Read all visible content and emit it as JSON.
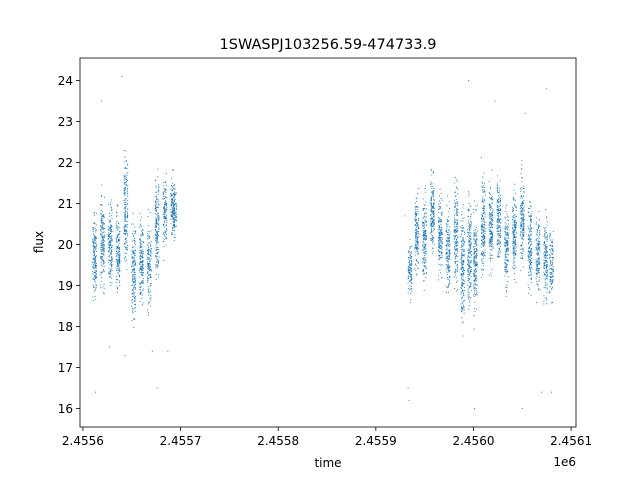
{
  "chart_data": {
    "type": "scatter",
    "title": "1SWASPJ103256.59-474733.9",
    "xlabel": "time",
    "ylabel": "flux",
    "x_offset_label": "1e6",
    "xlim": [
      2455597,
      2456105
    ],
    "ylim": [
      15.55,
      24.55
    ],
    "xticks": [
      2455600,
      2455700,
      2455800,
      2455900,
      2456000,
      2456100
    ],
    "xtick_labels": [
      "2.4556",
      "2.4557",
      "2.4558",
      "2.4559",
      "2.4560",
      "2.4561"
    ],
    "yticks": [
      16,
      17,
      18,
      19,
      20,
      21,
      22,
      23,
      24
    ],
    "ytick_labels": [
      "16",
      "17",
      "18",
      "19",
      "20",
      "21",
      "22",
      "23",
      "24"
    ],
    "grid": false,
    "marker_color": "#1f77b4",
    "series": [
      {
        "name": "",
        "clusters": [
          {
            "x": 2455612,
            "center": 19.7,
            "spread": 1.0,
            "n": 160
          },
          {
            "x": 2455620,
            "center": 20.1,
            "spread": 1.1,
            "n": 170
          },
          {
            "x": 2455628,
            "center": 20.0,
            "spread": 1.0,
            "n": 160
          },
          {
            "x": 2455636,
            "center": 19.8,
            "spread": 1.0,
            "n": 150
          },
          {
            "x": 2455644,
            "center": 20.8,
            "spread": 1.3,
            "n": 170
          },
          {
            "x": 2455652,
            "center": 19.4,
            "spread": 1.3,
            "n": 160
          },
          {
            "x": 2455660,
            "center": 19.6,
            "spread": 1.1,
            "n": 160
          },
          {
            "x": 2455668,
            "center": 19.5,
            "spread": 1.0,
            "n": 140
          },
          {
            "x": 2455676,
            "center": 20.5,
            "spread": 1.2,
            "n": 170
          },
          {
            "x": 2455684,
            "center": 20.7,
            "spread": 0.9,
            "n": 120
          },
          {
            "x": 2455692,
            "center": 20.9,
            "spread": 0.7,
            "n": 110
          },
          {
            "x": 2455694,
            "center": 20.8,
            "spread": 0.6,
            "n": 90
          },
          {
            "x": 2455935,
            "center": 19.4,
            "spread": 0.7,
            "n": 110
          },
          {
            "x": 2455942,
            "center": 20.3,
            "spread": 1.0,
            "n": 150
          },
          {
            "x": 2455950,
            "center": 20.1,
            "spread": 1.0,
            "n": 160
          },
          {
            "x": 2455958,
            "center": 20.8,
            "spread": 1.0,
            "n": 160
          },
          {
            "x": 2455966,
            "center": 20.2,
            "spread": 1.0,
            "n": 160
          },
          {
            "x": 2455974,
            "center": 19.8,
            "spread": 1.0,
            "n": 150
          },
          {
            "x": 2455982,
            "center": 20.3,
            "spread": 1.3,
            "n": 170
          },
          {
            "x": 2455989,
            "center": 19.5,
            "spread": 1.4,
            "n": 180
          },
          {
            "x": 2455996,
            "center": 19.8,
            "spread": 1.3,
            "n": 180
          },
          {
            "x": 2456002,
            "center": 19.6,
            "spread": 1.3,
            "n": 170
          },
          {
            "x": 2456010,
            "center": 20.5,
            "spread": 1.2,
            "n": 170
          },
          {
            "x": 2456018,
            "center": 20.4,
            "spread": 1.0,
            "n": 160
          },
          {
            "x": 2456026,
            "center": 20.6,
            "spread": 1.0,
            "n": 160
          },
          {
            "x": 2456034,
            "center": 19.9,
            "spread": 1.0,
            "n": 150
          },
          {
            "x": 2456042,
            "center": 20.3,
            "spread": 1.1,
            "n": 160
          },
          {
            "x": 2456050,
            "center": 20.6,
            "spread": 1.1,
            "n": 160
          },
          {
            "x": 2456058,
            "center": 20.0,
            "spread": 1.1,
            "n": 150
          },
          {
            "x": 2456066,
            "center": 19.8,
            "spread": 1.0,
            "n": 140
          },
          {
            "x": 2456074,
            "center": 19.6,
            "spread": 1.0,
            "n": 140
          },
          {
            "x": 2456080,
            "center": 19.5,
            "spread": 0.9,
            "n": 110
          }
        ],
        "outliers": [
          [
            2455619,
            23.5
          ],
          [
            2455627,
            17.5
          ],
          [
            2455640,
            24.1
          ],
          [
            2455643,
            17.3
          ],
          [
            2455671,
            17.4
          ],
          [
            2455676,
            16.5
          ],
          [
            2455687,
            17.4
          ],
          [
            2455613,
            16.4
          ],
          [
            2455934,
            16.2
          ],
          [
            2455933,
            16.5
          ],
          [
            2455995,
            24.0
          ],
          [
            2456022,
            23.5
          ],
          [
            2456070,
            16.4
          ],
          [
            2456080,
            16.4
          ],
          [
            2456075,
            23.8
          ],
          [
            2456001,
            16.0
          ],
          [
            2456050,
            16.0
          ],
          [
            2456053,
            23.2
          ],
          [
            2455930,
            20.7
          ]
        ]
      }
    ]
  }
}
